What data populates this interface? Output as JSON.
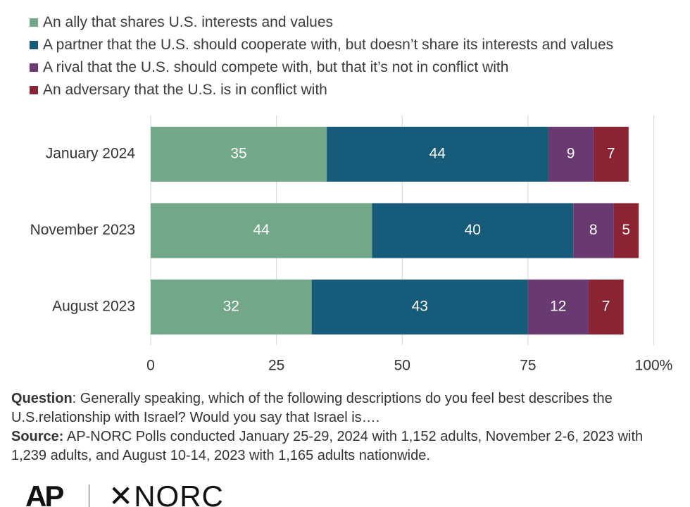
{
  "legend": [
    {
      "label": "An ally that shares U.S. interests and values",
      "color": "#72a78a"
    },
    {
      "label": "A partner that the U.S. should cooperate with, but doesn’t share its interests and values",
      "color": "#175b7b"
    },
    {
      "label": "A rival that the U.S. should compete with, but that it’s not in conflict with",
      "color": "#693a71"
    },
    {
      "label": "An adversary that the U.S. is in conflict with",
      "color": "#8a2432"
    }
  ],
  "chart_data": {
    "type": "bar",
    "orientation": "horizontal",
    "stacked": true,
    "categories": [
      "January 2024",
      "November 2023",
      "August 2023"
    ],
    "series": [
      {
        "name": "An ally that shares U.S. interests and values",
        "values": [
          35,
          44,
          32
        ],
        "color": "#72a78a"
      },
      {
        "name": "A partner that the U.S. should cooperate with, but doesn’t share its interests and values",
        "values": [
          44,
          40,
          43
        ],
        "color": "#175b7b"
      },
      {
        "name": "A rival that the U.S. should compete with, but that it’s not in conflict with",
        "values": [
          9,
          8,
          12
        ],
        "color": "#693a71"
      },
      {
        "name": "An adversary that the U.S. is in conflict with",
        "values": [
          7,
          5,
          7
        ],
        "color": "#8a2432"
      }
    ],
    "xlim": [
      0,
      100
    ],
    "xticks": [
      0,
      25,
      50,
      75,
      100
    ],
    "xtick_labels": [
      "0",
      "25",
      "50",
      "75",
      "100%"
    ],
    "grid": true,
    "legend_position": "top-left"
  },
  "notes": {
    "question_label": "Question",
    "question_text": ": Generally speaking, which of the following descriptions do you feel best describes the U.S.relationship with Israel? Would you say that Israel is….",
    "source_label": "Source:",
    "source_text": " AP-NORC Polls conducted January 25-29, 2024 with 1,152 adults, November 2-6, 2023 with 1,239 adults, and August 10-14, 2023 with 1,165 adults nationwide."
  },
  "logos": {
    "ap": "AP",
    "norc": "✕NORC"
  }
}
